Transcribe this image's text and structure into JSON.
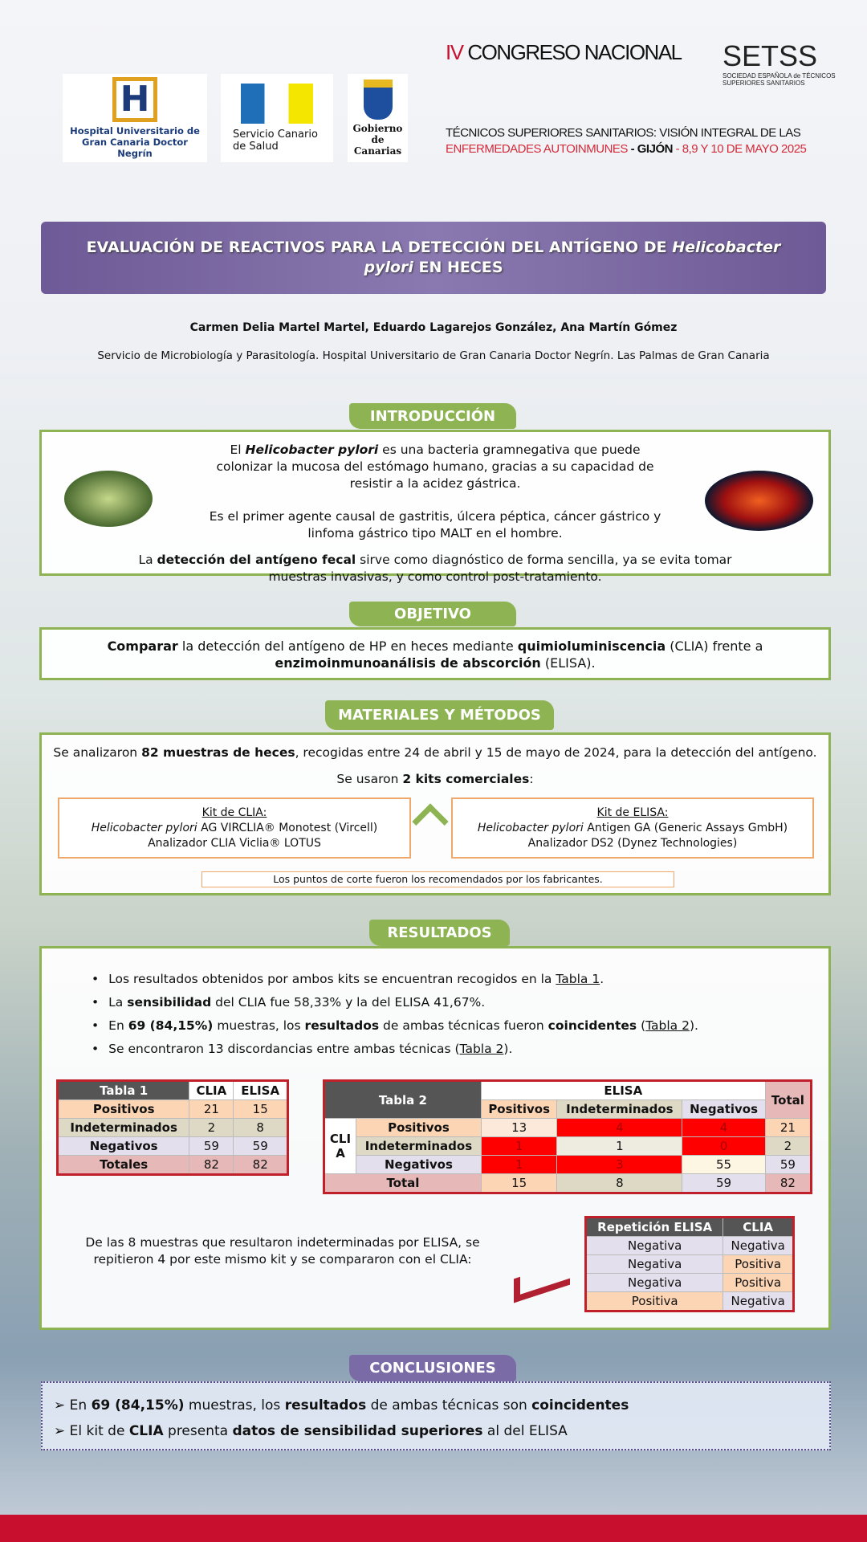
{
  "logos": {
    "hospital": "Hospital Universitario de Gran Canaria Doctor Negrín",
    "scs": "Servicio Canario de Salud",
    "gobierno": "Gobierno de Canarias"
  },
  "congress": {
    "numeral": "IV",
    "line1": "CONGRESO NACIONAL",
    "setss": "SETSS",
    "setss_sub": "SOCIEDAD ESPAÑOLA de TÉCNICOS SUPERIORES SANITARIOS",
    "line2": "TÉCNICOS SUPERIORES SANITARIOS: VISIÓN INTEGRAL DE LAS",
    "line3a": "ENFERMEDADES AUTOINMUNES",
    "line3b": " - GIJÓN",
    "line3c": " - 8,9 Y 10 DE MAYO 2025"
  },
  "title": {
    "part1": "EVALUACIÓN DE REACTIVOS PARA LA DETECCIÓN DEL ANTÍGENO DE ",
    "italic1": "Helicobacter pylori",
    "part2": " EN HECES"
  },
  "authors": "Carmen Delia Martel Martel, Eduardo Lagarejos González, Ana Martín Gómez",
  "affiliation": "Servicio de Microbiología y Parasitología. Hospital Universitario de Gran Canaria Doctor Negrín. Las Palmas de Gran Canaria",
  "intro": {
    "heading": "INTRODUCCIÓN",
    "p1a": "El ",
    "p1b": "Helicobacter pylori",
    "p1c": " es una bacteria gramnegativa que puede colonizar la mucosa del estómago humano, gracias a su capacidad de resistir a la acidez gástrica.",
    "p2": "Es el primer agente causal de gastritis, úlcera péptica, cáncer gástrico y linfoma gástrico tipo MALT en el hombre.",
    "p3a": "La ",
    "p3b": "detección del antígeno fecal",
    "p3c": " sirve como diagnóstico de forma sencilla, ya se evita tomar muestras invasivas, y como control post-tratamiento."
  },
  "objetivo": {
    "heading": "OBJETIVO",
    "a": "Comparar",
    "b": " la detección del antígeno de HP en heces mediante ",
    "c": "quimioluminiscencia",
    "d": " (CLIA) frente a ",
    "e": "enzimoinmunoanálisis de abscorción",
    "f": " (ELISA)."
  },
  "metodos": {
    "heading": "MATERIALES Y MÉTODOS",
    "s1a": "Se analizaron ",
    "s1b": "82 muestras de heces",
    "s1c": ", recogidas entre 24 de abril y 15 de mayo de 2024, para la detección del antígeno.",
    "s2a": "Se usaron ",
    "s2b": "2 kits comerciales",
    "s2c": ":",
    "kit1": {
      "title": "Kit de CLIA:",
      "italic": "Helicobacter pylori",
      "l1": " AG VIRCLIA® Monotest (Vircell)",
      "l2": "Analizador CLIA Viclia® LOTUS"
    },
    "kit2": {
      "title": "Kit de ELISA:",
      "italic": "Helicobacter pylori",
      "l1": " Antigen GA (Generic Assays GmbH)",
      "l2": "Analizador DS2 (Dynez Technologies)"
    },
    "note": "Los puntos de corte fueron los recomendados por los fabricantes."
  },
  "resultados": {
    "heading": "RESULTADOS",
    "b1a": "Los resultados obtenidos por ambos kits se encuentran recogidos en la ",
    "b1b": "Tabla 1",
    "b1c": ".",
    "b2a": "La ",
    "b2b": "sensibilidad",
    "b2c": " del CLIA fue 58,33% y la del ELISA 41,67%.",
    "b3a": "En ",
    "b3b": "69 (84,15%)",
    "b3c": " muestras, los ",
    "b3d": "resultados",
    "b3e": " de ambas técnicas fueron ",
    "b3f": "coincidentes",
    "b3g": " (",
    "b3h": "Tabla 2",
    "b3i": ").",
    "b4a": "Se encontraron 13 discordancias entre ambas técnicas (",
    "b4b": "Tabla 2",
    "b4c": ").",
    "tabla1": {
      "title": "Tabla 1",
      "cols": [
        "CLIA",
        "ELISA"
      ],
      "rows": [
        [
          "Positivos",
          "21",
          "15"
        ],
        [
          "Indeterminados",
          "2",
          "8"
        ],
        [
          "Negativos",
          "59",
          "59"
        ],
        [
          "Totales",
          "82",
          "82"
        ]
      ]
    },
    "tabla2": {
      "title": "Tabla 2",
      "elisa": "ELISA",
      "total": "Total",
      "clia": "CLIA",
      "cols": [
        "Positivos",
        "Indeterminados",
        "Negativos"
      ],
      "rows": [
        [
          "Positivos",
          "13",
          "4",
          "4",
          "21"
        ],
        [
          "Indeterminados",
          "1",
          "1",
          "0",
          "2"
        ],
        [
          "Negativos",
          "1",
          "3",
          "55",
          "59"
        ]
      ],
      "total_row": [
        "Total",
        "15",
        "8",
        "59",
        "82"
      ]
    },
    "repeat_text": "De las 8 muestras que resultaron indeterminadas por ELISA, se repitieron 4 por este mismo kit y se compararon con el CLIA:",
    "tabla3": {
      "cols": [
        "Repetición ELISA",
        "CLIA"
      ],
      "rows": [
        [
          "Negativa",
          "Negativa"
        ],
        [
          "Negativa",
          "Positiva"
        ],
        [
          "Negativa",
          "Positiva"
        ],
        [
          "Positiva",
          "Negativa"
        ]
      ]
    }
  },
  "conclusiones": {
    "heading": "CONCLUSIONES",
    "c1a": "En ",
    "c1b": "69 (84,15%)",
    "c1c": " muestras, los ",
    "c1d": "resultados",
    "c1e": " de ambas técnicas son ",
    "c1f": "coincidentes",
    "c2a": "El kit de ",
    "c2b": "CLIA",
    "c2c": " presenta ",
    "c2d": "datos de sensibilidad superiores",
    "c2e": " al del ELISA"
  },
  "colors": {
    "green": "#8db353",
    "purple": "#7a6aa6",
    "red": "#c0202a",
    "discordant": "#ff0000"
  }
}
